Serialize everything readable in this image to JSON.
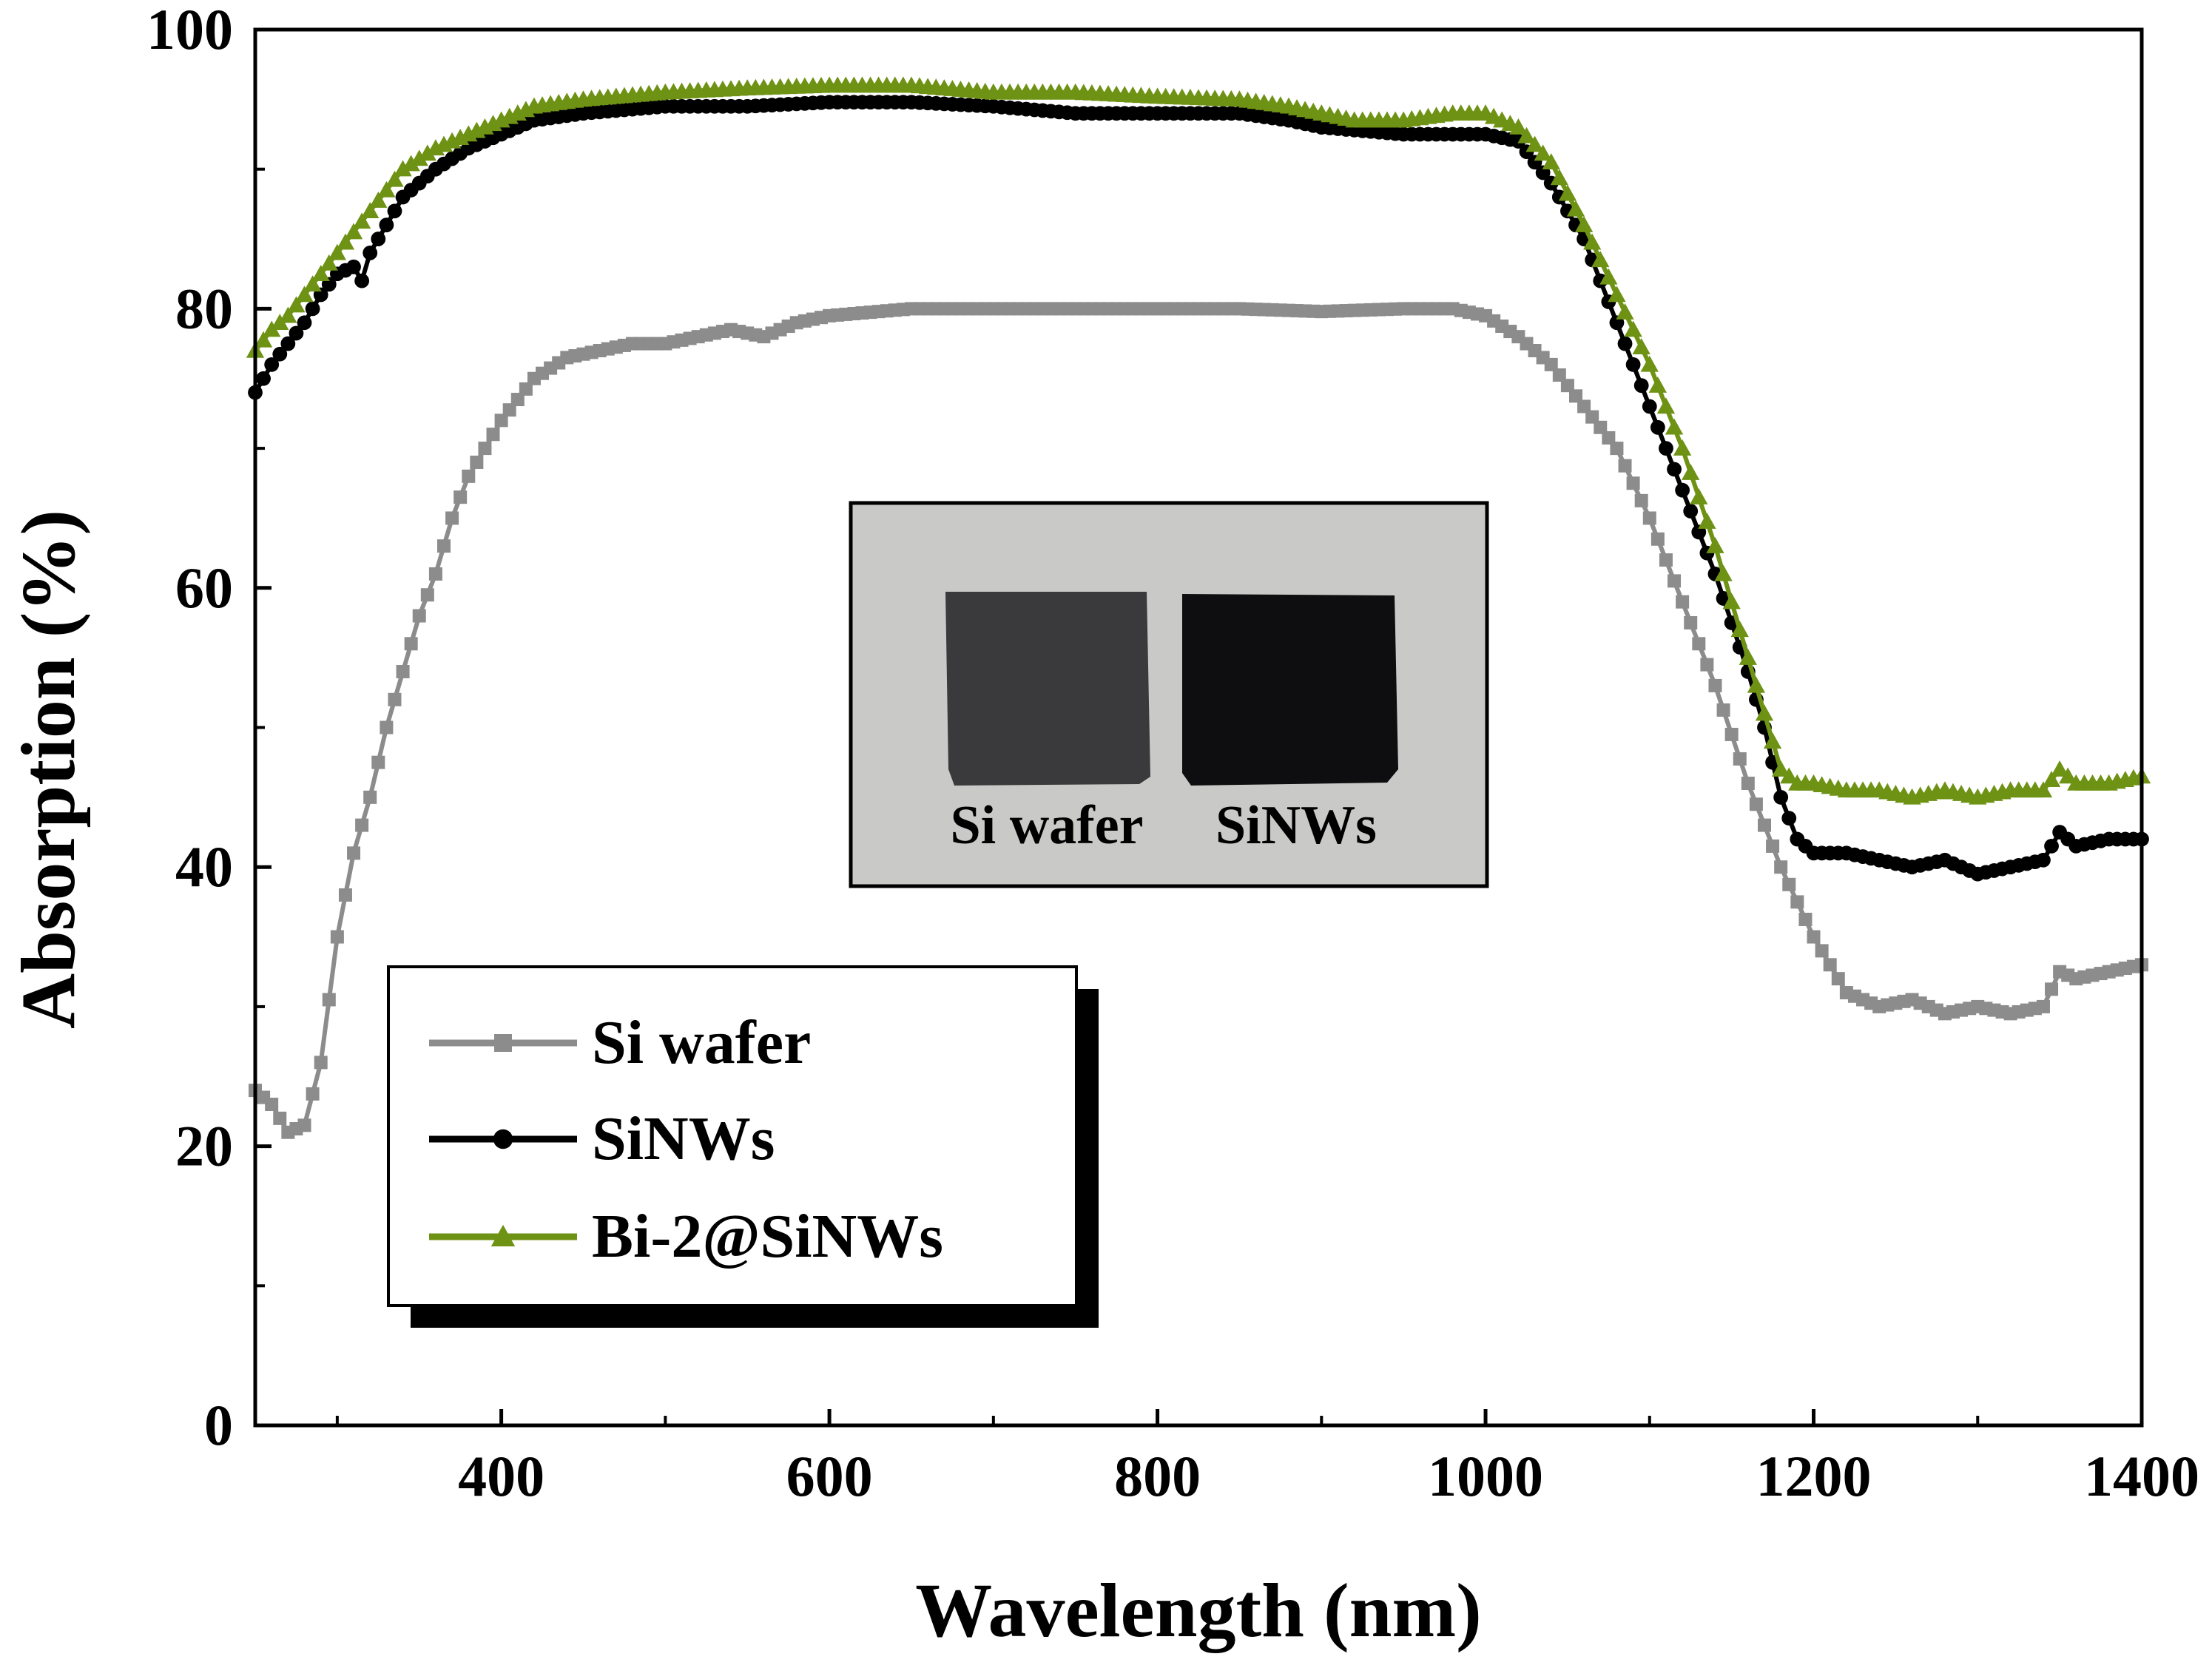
{
  "chart_data": {
    "type": "line",
    "title": "",
    "xlabel": "Wavelength (nm)",
    "ylabel": "Absorption (%)",
    "xlim": [
      250,
      1400
    ],
    "ylim": [
      0,
      100
    ],
    "x_ticks": [
      400,
      600,
      800,
      1000,
      1200,
      1400
    ],
    "x_minor_ticks": [
      300,
      500,
      700,
      900,
      1100,
      1300
    ],
    "y_ticks": [
      0,
      20,
      40,
      60,
      80,
      100
    ],
    "y_minor_ticks": [
      10,
      30,
      50,
      70,
      90
    ],
    "legend_position": "bottom-left",
    "series": [
      {
        "name": "Si wafer",
        "color": "#8c8c8c",
        "marker": "square",
        "points": [
          [
            250,
            24
          ],
          [
            260,
            23
          ],
          [
            270,
            21
          ],
          [
            280,
            21.5
          ],
          [
            290,
            26
          ],
          [
            300,
            35
          ],
          [
            310,
            41
          ],
          [
            320,
            45
          ],
          [
            330,
            50
          ],
          [
            340,
            54
          ],
          [
            350,
            58
          ],
          [
            360,
            61
          ],
          [
            370,
            65
          ],
          [
            380,
            68
          ],
          [
            390,
            70
          ],
          [
            400,
            72
          ],
          [
            420,
            75
          ],
          [
            440,
            76.5
          ],
          [
            460,
            77
          ],
          [
            480,
            77.5
          ],
          [
            500,
            77.5
          ],
          [
            520,
            78
          ],
          [
            540,
            78.5
          ],
          [
            560,
            78
          ],
          [
            580,
            79
          ],
          [
            600,
            79.5
          ],
          [
            650,
            80
          ],
          [
            700,
            80
          ],
          [
            750,
            80
          ],
          [
            800,
            80
          ],
          [
            850,
            80
          ],
          [
            900,
            79.8
          ],
          [
            950,
            80
          ],
          [
            980,
            80
          ],
          [
            1000,
            79.5
          ],
          [
            1020,
            78
          ],
          [
            1040,
            76
          ],
          [
            1060,
            73
          ],
          [
            1080,
            70
          ],
          [
            1100,
            65
          ],
          [
            1120,
            59
          ],
          [
            1140,
            53
          ],
          [
            1160,
            46
          ],
          [
            1180,
            40
          ],
          [
            1200,
            35
          ],
          [
            1220,
            31
          ],
          [
            1240,
            30
          ],
          [
            1260,
            30.5
          ],
          [
            1280,
            29.5
          ],
          [
            1300,
            30
          ],
          [
            1320,
            29.5
          ],
          [
            1340,
            30
          ],
          [
            1350,
            32.5
          ],
          [
            1360,
            32
          ],
          [
            1380,
            32.5
          ],
          [
            1400,
            33
          ]
        ]
      },
      {
        "name": "SiNWs",
        "color": "#000000",
        "marker": "circle",
        "points": [
          [
            250,
            74
          ],
          [
            260,
            76
          ],
          [
            270,
            77.5
          ],
          [
            280,
            79
          ],
          [
            290,
            81
          ],
          [
            300,
            82.5
          ],
          [
            310,
            83
          ],
          [
            315,
            82
          ],
          [
            320,
            84
          ],
          [
            330,
            86
          ],
          [
            340,
            88
          ],
          [
            360,
            90
          ],
          [
            380,
            91.5
          ],
          [
            400,
            92.5
          ],
          [
            420,
            93.5
          ],
          [
            450,
            94
          ],
          [
            500,
            94.5
          ],
          [
            550,
            94.5
          ],
          [
            600,
            94.8
          ],
          [
            650,
            94.8
          ],
          [
            700,
            94.5
          ],
          [
            750,
            94
          ],
          [
            800,
            94
          ],
          [
            850,
            94
          ],
          [
            880,
            93.5
          ],
          [
            900,
            93
          ],
          [
            950,
            92.5
          ],
          [
            980,
            92.5
          ],
          [
            1000,
            92.5
          ],
          [
            1020,
            92
          ],
          [
            1040,
            89
          ],
          [
            1060,
            85
          ],
          [
            1080,
            79
          ],
          [
            1100,
            73
          ],
          [
            1120,
            67
          ],
          [
            1140,
            61
          ],
          [
            1160,
            54
          ],
          [
            1170,
            50
          ],
          [
            1180,
            45
          ],
          [
            1190,
            42
          ],
          [
            1200,
            41
          ],
          [
            1220,
            41
          ],
          [
            1240,
            40.5
          ],
          [
            1260,
            40
          ],
          [
            1280,
            40.5
          ],
          [
            1300,
            39.5
          ],
          [
            1320,
            40
          ],
          [
            1340,
            40.5
          ],
          [
            1350,
            42.5
          ],
          [
            1360,
            41.5
          ],
          [
            1380,
            42
          ],
          [
            1400,
            42
          ]
        ]
      },
      {
        "name": "Bi-2@SiNWs",
        "color": "#6e9214",
        "marker": "triangle",
        "points": [
          [
            250,
            77
          ],
          [
            260,
            78.5
          ],
          [
            270,
            79.5
          ],
          [
            280,
            81
          ],
          [
            290,
            82.5
          ],
          [
            300,
            84
          ],
          [
            310,
            85.5
          ],
          [
            320,
            87
          ],
          [
            330,
            88.5
          ],
          [
            340,
            90
          ],
          [
            360,
            91.5
          ],
          [
            380,
            92.5
          ],
          [
            400,
            93.5
          ],
          [
            420,
            94.5
          ],
          [
            450,
            95
          ],
          [
            500,
            95.5
          ],
          [
            550,
            95.8
          ],
          [
            600,
            96
          ],
          [
            650,
            96
          ],
          [
            700,
            95.5
          ],
          [
            750,
            95.5
          ],
          [
            800,
            95.2
          ],
          [
            850,
            95
          ],
          [
            880,
            94.5
          ],
          [
            900,
            94
          ],
          [
            920,
            93.5
          ],
          [
            950,
            93.5
          ],
          [
            980,
            94
          ],
          [
            1000,
            94
          ],
          [
            1020,
            93
          ],
          [
            1040,
            90.5
          ],
          [
            1060,
            86
          ],
          [
            1080,
            81
          ],
          [
            1100,
            76
          ],
          [
            1120,
            70
          ],
          [
            1140,
            63
          ],
          [
            1160,
            55
          ],
          [
            1170,
            51
          ],
          [
            1180,
            47
          ],
          [
            1190,
            46
          ],
          [
            1200,
            46
          ],
          [
            1220,
            45.5
          ],
          [
            1240,
            45.5
          ],
          [
            1260,
            45
          ],
          [
            1280,
            45.5
          ],
          [
            1300,
            45
          ],
          [
            1320,
            45.5
          ],
          [
            1340,
            45.5
          ],
          [
            1350,
            47
          ],
          [
            1360,
            46
          ],
          [
            1380,
            46
          ],
          [
            1400,
            46.5
          ]
        ]
      }
    ]
  },
  "inset": {
    "left_label": "Si wafer",
    "right_label": "SiNWs"
  }
}
